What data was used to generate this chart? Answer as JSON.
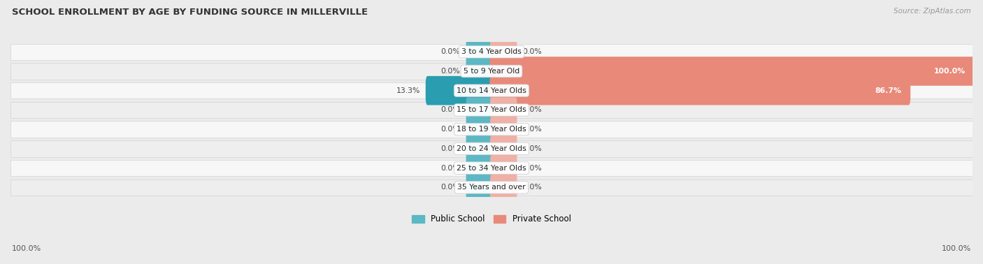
{
  "title": "SCHOOL ENROLLMENT BY AGE BY FUNDING SOURCE IN MILLERVILLE",
  "source": "Source: ZipAtlas.com",
  "categories": [
    "3 to 4 Year Olds",
    "5 to 9 Year Old",
    "10 to 14 Year Olds",
    "15 to 17 Year Olds",
    "18 to 19 Year Olds",
    "20 to 24 Year Olds",
    "25 to 34 Year Olds",
    "35 Years and over"
  ],
  "public_values": [
    0.0,
    0.0,
    13.3,
    0.0,
    0.0,
    0.0,
    0.0,
    0.0
  ],
  "private_values": [
    0.0,
    100.0,
    86.7,
    0.0,
    0.0,
    0.0,
    0.0,
    0.0
  ],
  "public_color": "#5bb8c4",
  "public_color_dark": "#2a9db0",
  "private_color": "#e8897a",
  "private_color_light": "#f0b0a5",
  "row_bg_even": "#f7f7f7",
  "row_bg_odd": "#eeeeee",
  "bottom_left_label": "100.0%",
  "bottom_right_label": "100.0%",
  "stub_size": 5.0,
  "max_value": 100.0
}
